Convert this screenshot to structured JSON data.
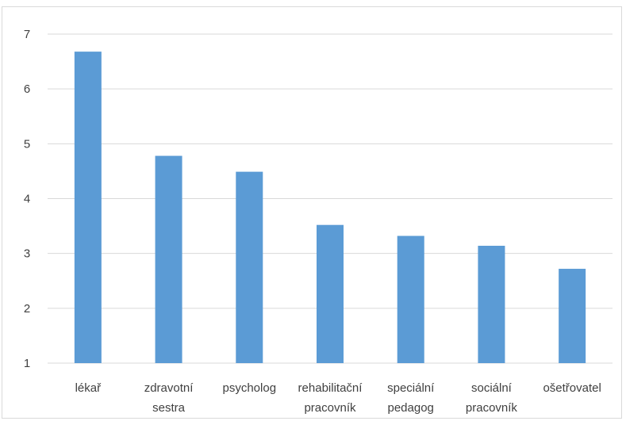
{
  "chart_data": {
    "type": "bar",
    "categories": [
      [
        "lékař"
      ],
      [
        "zdravotní",
        "sestra"
      ],
      [
        "psycholog"
      ],
      [
        "rehabilitační",
        "pracovník"
      ],
      [
        "speciální",
        "pedagog"
      ],
      [
        "sociální",
        "pracovník"
      ],
      [
        "ošetřovatel"
      ]
    ],
    "values": [
      6.68,
      4.78,
      4.49,
      3.52,
      3.32,
      3.14,
      2.72
    ],
    "title": "",
    "xlabel": "",
    "ylabel": "",
    "ylim": [
      1,
      7
    ],
    "yticks": [
      "1",
      "2",
      "3",
      "4",
      "5",
      "6",
      "7"
    ],
    "grid": true,
    "legend": "none",
    "bar_color": "#5b9bd5",
    "grid_color": "#d9d9d9",
    "text_color": "#404040"
  }
}
